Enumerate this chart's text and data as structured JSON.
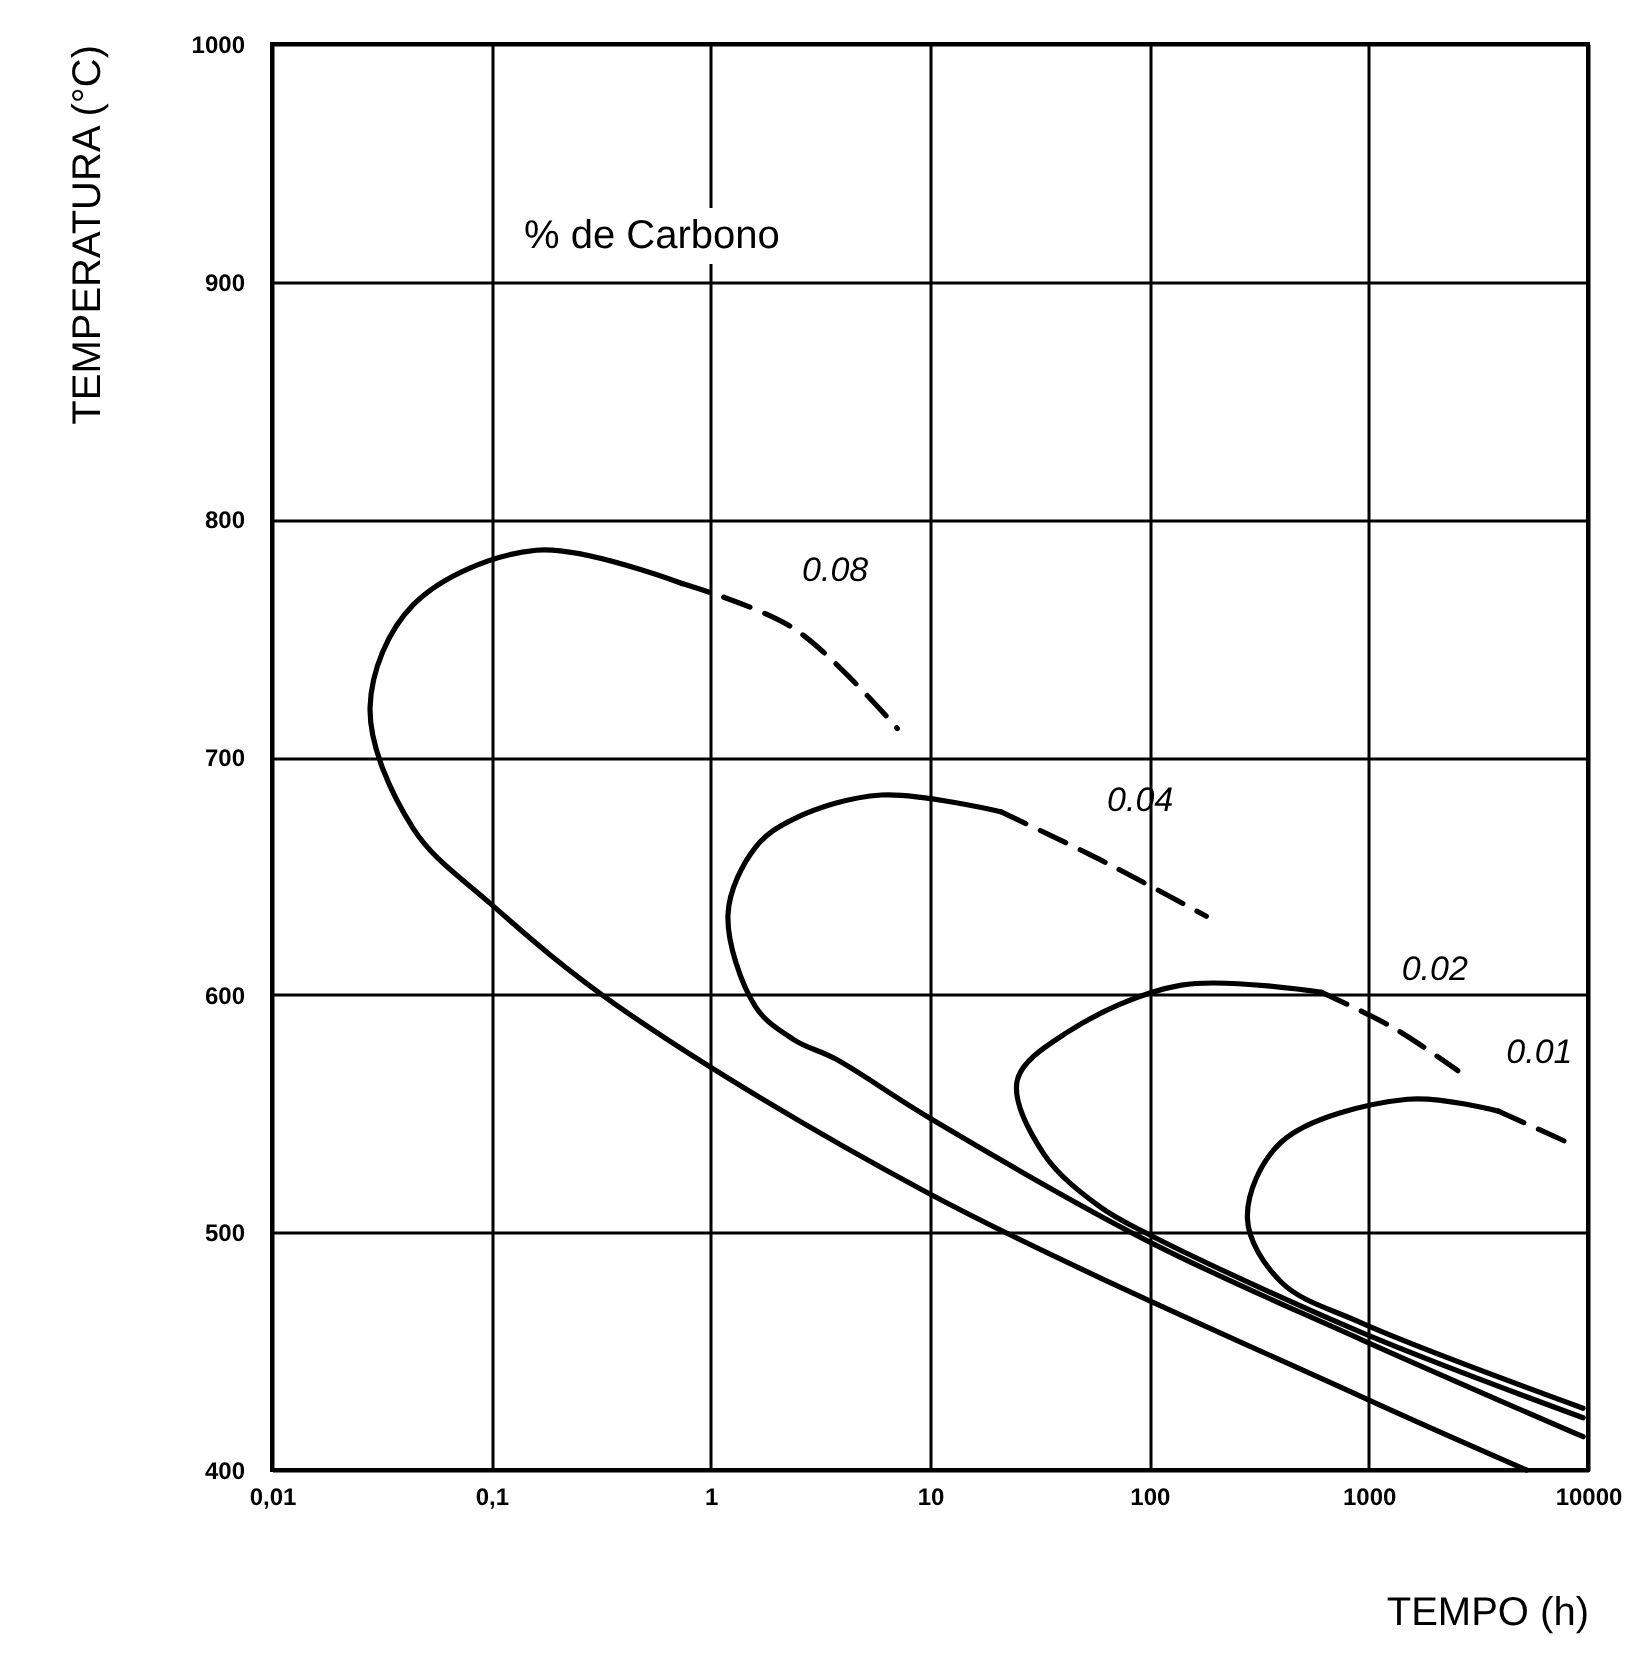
{
  "chart_data": {
    "type": "line",
    "xlabel": "TEMPO (h)",
    "ylabel": "TEMPERATURA (°C)",
    "log": "x",
    "xlim": [
      0.01,
      10000
    ],
    "xticks": [
      {
        "value": 0.01,
        "label": "0,01"
      },
      {
        "value": 0.1,
        "label": "0,1"
      },
      1,
      10,
      100,
      1000,
      10000
    ],
    "ylim": [
      400,
      1000
    ],
    "yticks": [
      400,
      500,
      600,
      700,
      800,
      900,
      1000
    ],
    "grid": true,
    "marker": "none",
    "series": [
      {
        "color": "#000000",
        "line_style": "solid",
        "x": [
          5250,
          920,
          9.6,
          0.38,
          0.1,
          0.044,
          0.028,
          0.044,
          0.16,
          0.74
        ],
        "values": [
          400,
          431,
          517,
          595,
          638,
          670,
          721,
          764,
          787,
          773
        ]
      },
      {
        "name": "0.08",
        "color": "#000000",
        "line_style": "dashed",
        "x": [
          0.74,
          2.4,
          7.1
        ],
        "values": [
          773,
          754,
          712
        ]
      },
      {
        "color": "#000000",
        "line_style": "solid",
        "x": [
          9500,
          920,
          100,
          10,
          3.7,
          2.4,
          1.6,
          1.2,
          1.6,
          2.4,
          6,
          21
        ],
        "values": [
          414,
          455,
          496,
          548,
          573,
          581,
          595,
          634,
          662,
          674,
          684,
          677
        ]
      },
      {
        "name": "0.04",
        "color": "#000000",
        "line_style": "dashed",
        "x": [
          21,
          59,
          182
        ],
        "values": [
          677,
          657,
          633
        ]
      },
      {
        "color": "#000000",
        "line_style": "solid",
        "x": [
          9500,
          920,
          100,
          59,
          33,
          25,
          42,
          140,
          610
        ],
        "values": [
          422,
          458,
          499,
          511,
          533,
          564,
          584,
          604,
          601
        ]
      },
      {
        "name": "0.02",
        "color": "#000000",
        "line_style": "dashed",
        "x": [
          610,
          1300,
          2550
        ],
        "values": [
          601,
          586,
          568
        ]
      },
      {
        "color": "#000000",
        "line_style": "solid",
        "x": [
          9500,
          920,
          400,
          280,
          400,
          1500,
          3900
        ],
        "values": [
          426,
          462,
          479,
          506,
          538,
          556,
          551
        ]
      },
      {
        "name": "0.01",
        "color": "#000000",
        "line_style": "dashed",
        "x": [
          3900,
          8000
        ],
        "values": [
          551,
          538
        ]
      }
    ],
    "annotations": [
      "% de Carbono"
    ]
  }
}
